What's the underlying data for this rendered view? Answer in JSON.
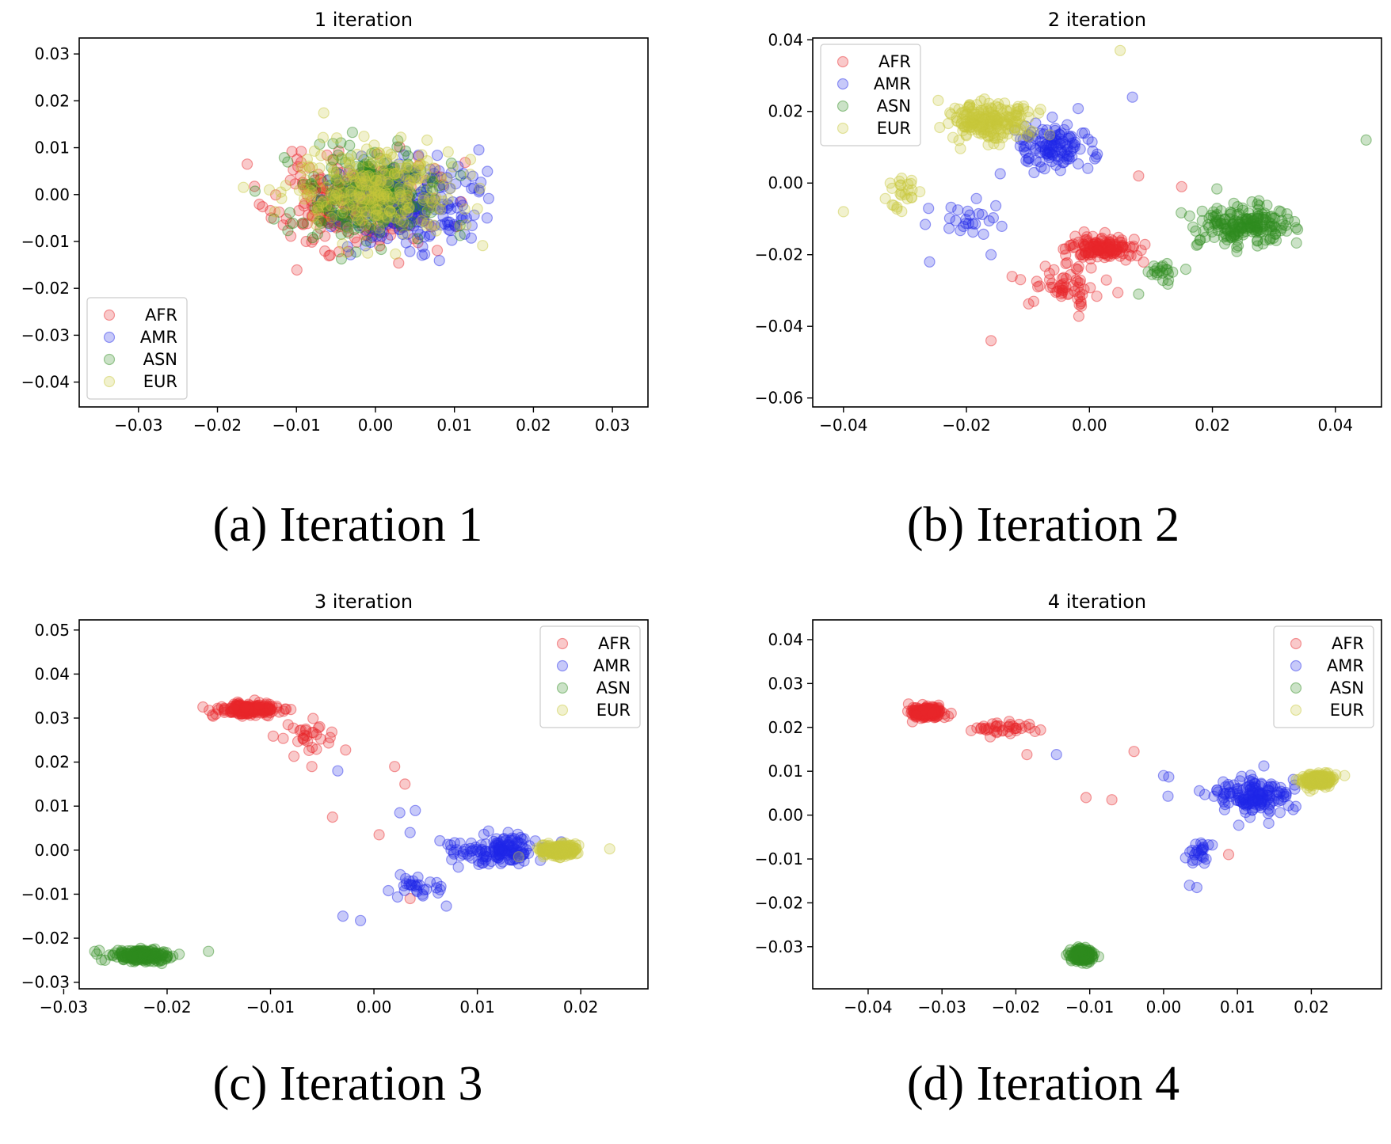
{
  "figure": {
    "captions": [
      "(a) Iteration 1",
      "(b) Iteration 2",
      "(c) Iteration 3",
      "(d) Iteration 4"
    ]
  },
  "legend_labels": [
    "AFR",
    "AMR",
    "ASN",
    "EUR"
  ],
  "colors": {
    "AFR": "#e8262a",
    "AMR": "#1f26e8",
    "ASN": "#2e8b1f",
    "EUR": "#c8c83a"
  },
  "chart_data": [
    {
      "type": "scatter",
      "title": "1 iteration",
      "xlabel": "",
      "ylabel": "",
      "xlim": [
        -0.0375,
        0.0345
      ],
      "ylim": [
        -0.0453,
        0.0334
      ],
      "xticks": [
        -0.03,
        -0.02,
        -0.01,
        0.0,
        0.01,
        0.02,
        0.03
      ],
      "yticks": [
        -0.04,
        -0.03,
        -0.02,
        -0.01,
        0.0,
        0.01,
        0.02,
        0.03
      ],
      "legend": "lower-left",
      "grid": false,
      "series": [
        {
          "name": "AFR",
          "distribution": {
            "center": [
              -0.003,
              -0.002
            ],
            "spread": [
              0.009,
              0.009
            ],
            "count": 250,
            "seed": 11
          }
        },
        {
          "name": "AMR",
          "distribution": {
            "center": [
              0.004,
              -0.002
            ],
            "spread": [
              0.008,
              0.008
            ],
            "count": 250,
            "seed": 12
          }
        },
        {
          "name": "ASN",
          "distribution": {
            "center": [
              -0.002,
              0.0
            ],
            "spread": [
              0.009,
              0.009
            ],
            "count": 250,
            "seed": 13
          }
        },
        {
          "name": "EUR",
          "distribution": {
            "center": [
              0.0,
              0.001
            ],
            "spread": [
              0.01,
              0.009
            ],
            "count": 250,
            "seed": 14
          }
        }
      ]
    },
    {
      "type": "scatter",
      "title": "2 iteration",
      "xlabel": "",
      "ylabel": "",
      "xlim": [
        -0.045,
        0.0475
      ],
      "ylim": [
        -0.0625,
        0.0405
      ],
      "xticks": [
        -0.04,
        -0.02,
        0.0,
        0.02,
        0.04
      ],
      "yticks": [
        -0.06,
        -0.04,
        -0.02,
        0.0,
        0.02,
        0.04
      ],
      "legend": "upper-left",
      "grid": false,
      "series": [
        {
          "name": "AFR",
          "clusters": [
            {
              "center": [
                0.002,
                -0.018
              ],
              "spread": [
                0.005,
                0.003
              ],
              "count": 140,
              "seed": 21
            },
            {
              "center": [
                -0.004,
                -0.028
              ],
              "spread": [
                0.005,
                0.005
              ],
              "count": 60,
              "seed": 22
            }
          ],
          "points": [
            [
              -0.016,
              -0.044
            ],
            [
              0.015,
              -0.001
            ],
            [
              0.008,
              0.002
            ]
          ]
        },
        {
          "name": "AMR",
          "clusters": [
            {
              "center": [
                -0.006,
                0.01
              ],
              "spread": [
                0.006,
                0.006
              ],
              "count": 120,
              "seed": 23
            },
            {
              "center": [
                -0.02,
                -0.01
              ],
              "spread": [
                0.006,
                0.005
              ],
              "count": 25,
              "seed": 24
            }
          ],
          "points": [
            [
              -0.026,
              -0.022
            ],
            [
              0.007,
              0.024
            ],
            [
              -0.016,
              -0.02
            ]
          ]
        },
        {
          "name": "ASN",
          "clusters": [
            {
              "center": [
                0.025,
                -0.012
              ],
              "spread": [
                0.007,
                0.005
              ],
              "count": 190,
              "seed": 25
            },
            {
              "center": [
                0.012,
                -0.025
              ],
              "spread": [
                0.003,
                0.003
              ],
              "count": 20,
              "seed": 26
            }
          ],
          "points": [
            [
              0.045,
              0.012
            ],
            [
              0.008,
              -0.031
            ]
          ]
        },
        {
          "name": "EUR",
          "clusters": [
            {
              "center": [
                -0.016,
                0.017
              ],
              "spread": [
                0.006,
                0.005
              ],
              "count": 200,
              "seed": 27
            },
            {
              "center": [
                -0.03,
                -0.003
              ],
              "spread": [
                0.004,
                0.004
              ],
              "count": 25,
              "seed": 28
            }
          ],
          "points": [
            [
              -0.04,
              -0.008
            ],
            [
              0.005,
              0.037
            ]
          ]
        }
      ]
    },
    {
      "type": "scatter",
      "title": "3 iteration",
      "xlabel": "",
      "ylabel": "",
      "xlim": [
        -0.0285,
        0.0265
      ],
      "ylim": [
        -0.0315,
        0.0523
      ],
      "xticks": [
        -0.03,
        -0.02,
        -0.01,
        0.0,
        0.01,
        0.02
      ],
      "yticks": [
        -0.03,
        -0.02,
        -0.01,
        0.0,
        0.01,
        0.02,
        0.03,
        0.04,
        0.05
      ],
      "legend": "upper-right",
      "grid": false,
      "series": [
        {
          "name": "AFR",
          "clusters": [
            {
              "center": [
                -0.012,
                0.032
              ],
              "spread": [
                0.0025,
                0.0012
              ],
              "count": 200,
              "seed": 31
            },
            {
              "center": [
                -0.006,
                0.026
              ],
              "spread": [
                0.003,
                0.003
              ],
              "count": 30,
              "seed": 32
            }
          ],
          "points": [
            [
              -0.004,
              0.0075
            ],
            [
              0.002,
              0.019
            ],
            [
              0.0005,
              0.0035
            ],
            [
              -0.006,
              0.019
            ],
            [
              0.003,
              0.015
            ],
            [
              0.0035,
              -0.011
            ]
          ]
        },
        {
          "name": "AMR",
          "clusters": [
            {
              "center": [
                0.012,
                0.0
              ],
              "spread": [
                0.004,
                0.003
              ],
              "count": 150,
              "seed": 33
            },
            {
              "center": [
                0.004,
                -0.008
              ],
              "spread": [
                0.003,
                0.003
              ],
              "count": 30,
              "seed": 34
            }
          ],
          "points": [
            [
              -0.003,
              -0.015
            ],
            [
              -0.0013,
              -0.016
            ],
            [
              0.0025,
              0.0085
            ],
            [
              -0.0035,
              0.018
            ],
            [
              0.004,
              0.009
            ],
            [
              0.0035,
              0.004
            ]
          ]
        },
        {
          "name": "ASN",
          "clusters": [
            {
              "center": [
                -0.0225,
                -0.024
              ],
              "spread": [
                0.0025,
                0.0012
              ],
              "count": 200,
              "seed": 35
            }
          ],
          "points": [
            [
              -0.027,
              -0.023
            ],
            [
              -0.016,
              -0.023
            ],
            [
              -0.026,
              -0.025
            ]
          ]
        },
        {
          "name": "EUR",
          "clusters": [
            {
              "center": [
                0.018,
                0.0
              ],
              "spread": [
                0.0016,
                0.0012
              ],
              "count": 200,
              "seed": 36
            }
          ],
          "points": [
            [
              0.0228,
              0.0003
            ],
            [
              0.014,
              -0.0015
            ]
          ]
        }
      ]
    },
    {
      "type": "scatter",
      "title": "4 iteration",
      "xlabel": "",
      "ylabel": "",
      "xlim": [
        -0.0475,
        0.0295
      ],
      "ylim": [
        -0.0396,
        0.0445
      ],
      "xticks": [
        -0.04,
        -0.03,
        -0.02,
        -0.01,
        0.0,
        0.01,
        0.02
      ],
      "yticks": [
        -0.03,
        -0.02,
        -0.01,
        0.0,
        0.01,
        0.02,
        0.03,
        0.04
      ],
      "legend": "upper-right",
      "grid": false,
      "series": [
        {
          "name": "AFR",
          "clusters": [
            {
              "center": [
                -0.032,
                0.0235
              ],
              "spread": [
                0.0018,
                0.0012
              ],
              "count": 200,
              "seed": 41
            },
            {
              "center": [
                -0.022,
                0.02
              ],
              "spread": [
                0.004,
                0.0012
              ],
              "count": 40,
              "seed": 42
            }
          ],
          "points": [
            [
              -0.0105,
              0.004
            ],
            [
              -0.007,
              0.0035
            ],
            [
              -0.004,
              0.0145
            ],
            [
              -0.0185,
              0.0138
            ],
            [
              0.0088,
              -0.009
            ]
          ]
        },
        {
          "name": "AMR",
          "clusters": [
            {
              "center": [
                0.012,
                0.004
              ],
              "spread": [
                0.0045,
                0.004
              ],
              "count": 160,
              "seed": 43
            },
            {
              "center": [
                0.005,
                -0.009
              ],
              "spread": [
                0.002,
                0.003
              ],
              "count": 25,
              "seed": 44
            }
          ],
          "points": [
            [
              -0.0145,
              0.0138
            ],
            [
              0.0,
              0.009
            ],
            [
              0.0007,
              0.0087
            ],
            [
              0.0035,
              -0.016
            ],
            [
              0.0045,
              -0.0165
            ],
            [
              0.0006,
              0.0043
            ]
          ]
        },
        {
          "name": "ASN",
          "clusters": [
            {
              "center": [
                -0.011,
                -0.032
              ],
              "spread": [
                0.0012,
                0.0012
              ],
              "count": 200,
              "seed": 45
            }
          ],
          "points": []
        },
        {
          "name": "EUR",
          "clusters": [
            {
              "center": [
                0.021,
                0.008
              ],
              "spread": [
                0.0018,
                0.0012
              ],
              "count": 200,
              "seed": 46
            }
          ],
          "points": [
            [
              0.0245,
              0.009
            ]
          ]
        }
      ]
    }
  ]
}
